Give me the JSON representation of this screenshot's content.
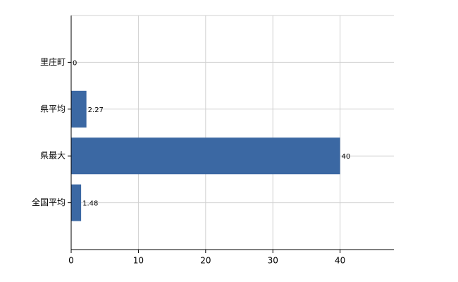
{
  "chart_data": {
    "type": "barh",
    "categories": [
      "里庄町",
      "県平均",
      "県最大",
      "全国平均"
    ],
    "values": [
      0,
      2.27,
      40,
      1.48
    ],
    "color": "#3b68a3",
    "xlim": [
      0,
      48
    ],
    "xticks": [
      0,
      10,
      20,
      30,
      40
    ],
    "grid": true
  }
}
